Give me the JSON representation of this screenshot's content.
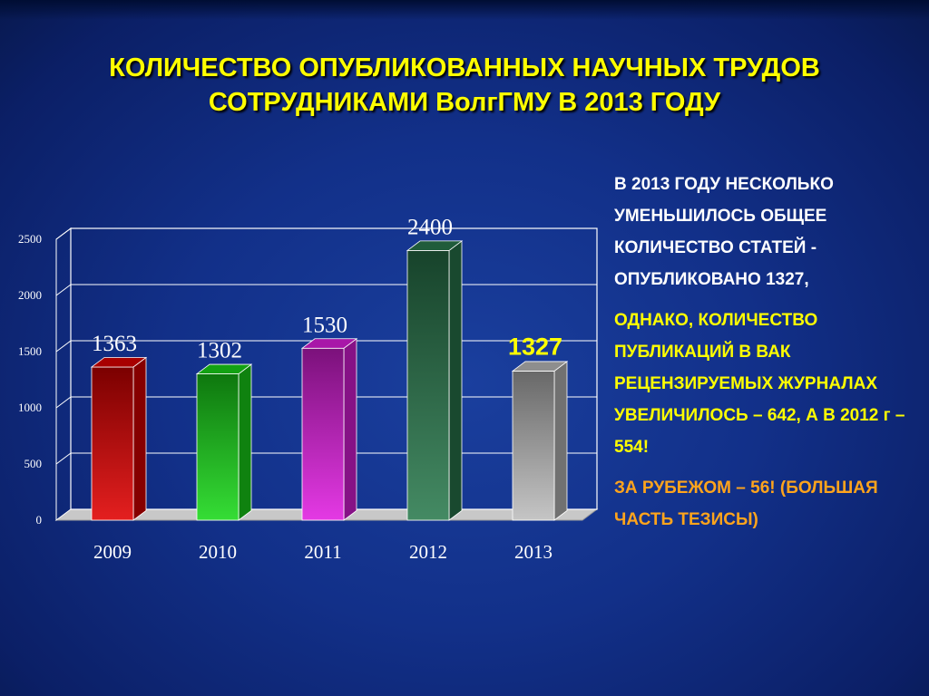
{
  "title": {
    "line1": "КОЛИЧЕСТВО ОПУБЛИКОВАННЫХ НАУЧНЫХ ТРУДОВ",
    "line2": "СОТРУДНИКАМИ  ВолгГМУ В 2013 ГОДУ"
  },
  "side_text": {
    "p1": "В 2013 ГОДУ НЕСКОЛЬКО УМЕНЬШИЛОСЬ ОБЩЕЕ КОЛИЧЕСТВО  СТАТЕЙ - ОПУБЛИКОВАНО 1327,",
    "p2": "ОДНАКО, КОЛИЧЕСТВО ПУБЛИКАЦИЙ В ВАК РЕЦЕНЗИРУЕМЫХ ЖУРНАЛАХ УВЕЛИЧИЛОСЬ – 642, А В 2012 г – 554!",
    "p3": " ЗА РУБЕЖОМ – 56! (БОЛЬШАЯ ЧАСТЬ ТЕЗИСЫ)"
  },
  "colors": {
    "title": "#ffff00",
    "highlight_label": "#ffff00",
    "orange_text": "#ffa41c"
  },
  "chart_data": {
    "type": "bar",
    "categories": [
      "2009",
      "2010",
      "2011",
      "2012",
      "2013"
    ],
    "values": [
      1363,
      1302,
      1530,
      2400,
      1327
    ],
    "data_labels": [
      "1363",
      "1302",
      "1530",
      "2400",
      "1327"
    ],
    "highlighted_label_index": 4,
    "bar_colors": [
      "#e00000",
      "#19d819",
      "#e01ee0",
      "#2a7a4e",
      "#bdbdbd"
    ],
    "yticks": [
      "0",
      "500",
      "1000",
      "1500",
      "2000",
      "2500"
    ],
    "ylim": [
      0,
      2500
    ],
    "grid": true,
    "legend": "none"
  }
}
